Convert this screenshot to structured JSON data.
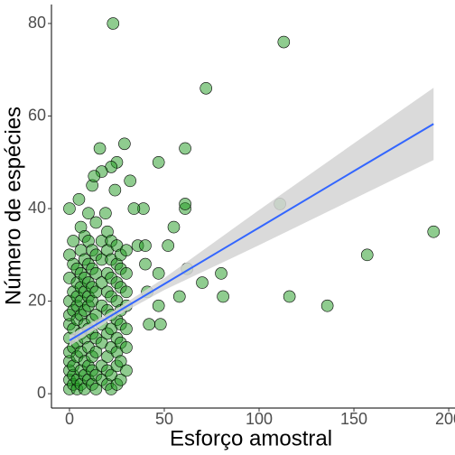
{
  "chart_data": {
    "type": "scatter",
    "x_label": "Esforço amostral",
    "y_label": "Número de espécies",
    "xlim": [
      -9.5,
      203.3
    ],
    "ylim": [
      -3.1,
      84.1
    ],
    "xticks": [
      0,
      50,
      100,
      150,
      200
    ],
    "yticks": [
      0,
      20,
      40,
      60,
      80
    ],
    "point_color": "#1f9a1f",
    "x": [
      0,
      0,
      0,
      0,
      0,
      0,
      0,
      0,
      0,
      0,
      0,
      2,
      2,
      2,
      2,
      2,
      2,
      2,
      2,
      2,
      4,
      4,
      4,
      4,
      4,
      4,
      4,
      4,
      4,
      6,
      6,
      6,
      6,
      6,
      6,
      6,
      6,
      6,
      6,
      8,
      8,
      8,
      8,
      8,
      8,
      8,
      8,
      8,
      8,
      10,
      10,
      10,
      10,
      10,
      10,
      10,
      10,
      10,
      10,
      12,
      12,
      12,
      12,
      12,
      12,
      12,
      12,
      12,
      12,
      14,
      14,
      14,
      14,
      14,
      14,
      14,
      14,
      14,
      17,
      17,
      17,
      17,
      17,
      17,
      17,
      17,
      20,
      20,
      20,
      20,
      20,
      20,
      20,
      20,
      20,
      22,
      22,
      22,
      22,
      22,
      22,
      22,
      22,
      22,
      25,
      25,
      25,
      25,
      25,
      25,
      25,
      25,
      25,
      27,
      27,
      27,
      27,
      27,
      27,
      27,
      27,
      30,
      30,
      30,
      30,
      30,
      30,
      30,
      23,
      113,
      72,
      61,
      47,
      61,
      61,
      55,
      111,
      192,
      157,
      116,
      136,
      80,
      81,
      70,
      62,
      58,
      47,
      47,
      48,
      42,
      41,
      40,
      39,
      34,
      32,
      29,
      16,
      25,
      22,
      17,
      24,
      13,
      5,
      0,
      19,
      36,
      40,
      52
    ],
    "values": [
      1,
      3,
      5,
      7,
      9,
      12,
      15,
      17,
      20,
      25,
      30,
      2,
      4,
      6,
      10,
      14,
      18,
      22,
      28,
      33,
      1,
      3,
      8,
      11,
      16,
      19,
      21,
      24,
      27,
      2,
      5,
      9,
      13,
      17,
      20,
      23,
      26,
      31,
      36,
      1,
      4,
      7,
      12,
      15,
      18,
      22,
      25,
      29,
      34,
      3,
      6,
      10,
      14,
      19,
      21,
      24,
      28,
      33,
      39,
      2,
      5,
      8,
      13,
      16,
      20,
      23,
      27,
      31,
      45,
      1,
      4,
      9,
      12,
      17,
      22,
      26,
      30,
      37,
      3,
      6,
      11,
      15,
      19,
      24,
      29,
      33,
      2,
      5,
      8,
      13,
      18,
      22,
      26,
      31,
      35,
      1,
      4,
      10,
      14,
      17,
      21,
      25,
      29,
      33,
      2,
      6,
      9,
      12,
      16,
      20,
      24,
      28,
      32,
      3,
      7,
      11,
      15,
      18,
      23,
      27,
      30,
      5,
      10,
      14,
      19,
      22,
      26,
      31,
      80,
      76,
      66,
      53,
      50,
      40,
      41,
      36,
      41,
      35,
      30,
      21,
      19,
      26,
      21,
      24,
      27,
      21,
      26,
      19,
      15,
      15,
      22,
      28,
      40,
      40,
      46,
      54,
      53,
      50,
      49,
      48,
      44,
      47,
      42,
      40,
      39,
      32,
      32,
      32
    ],
    "fit": {
      "color": "#3366ff",
      "x": [
        0,
        25,
        50,
        100,
        150,
        192
      ],
      "values": [
        11.5,
        17.6,
        23.7,
        35.9,
        48.1,
        58.3
      ]
    },
    "band": {
      "color": "#d3d3d3",
      "x": [
        0,
        25,
        50,
        100,
        150,
        192
      ],
      "lower": [
        10.3,
        16.8,
        22.4,
        32.1,
        42.1,
        50.5
      ],
      "upper": [
        12.7,
        18.4,
        25.0,
        39.7,
        54.1,
        66.1
      ]
    }
  }
}
